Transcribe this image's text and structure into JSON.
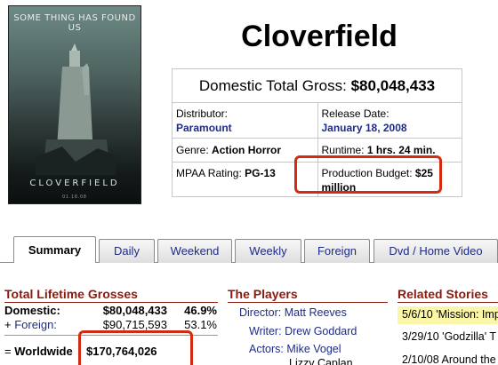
{
  "poster": {
    "tagline": "SOME THING HAS FOUND US",
    "title": "CLOVERFIELD",
    "date": "01.18.08"
  },
  "movie": {
    "title": "Cloverfield"
  },
  "info": {
    "gross_label": "Domestic Total Gross:",
    "gross_value": "$80,048,433",
    "distributor_label": "Distributor:",
    "distributor_value": "Paramount",
    "release_label": "Release Date:",
    "release_value": "January 18, 2008",
    "genre_label": "Genre:",
    "genre_value": "Action Horror",
    "runtime_label": "Runtime:",
    "runtime_value": "1 hrs. 24 min.",
    "mpaa_label": "MPAA Rating:",
    "mpaa_value": "PG-13",
    "budget_label": "Production Budget:",
    "budget_value_1": "$25",
    "budget_value_2": "million"
  },
  "tabs": [
    {
      "label": "Summary",
      "active": true
    },
    {
      "label": "Daily"
    },
    {
      "label": "Weekend"
    },
    {
      "label": "Weekly"
    },
    {
      "label": "Foreign"
    },
    {
      "label": "Dvd / Home Video"
    }
  ],
  "grosses": {
    "header": "Total Lifetime Grosses",
    "domestic_label": "Domestic:",
    "domestic_value": "$80,048,433",
    "domestic_pct": "46.9%",
    "foreign_prefix": "+",
    "foreign_label": "Foreign:",
    "foreign_value": "$90,715,593",
    "foreign_pct": "53.1%",
    "worldwide_prefix": "=",
    "worldwide_label": "Worldwide",
    "worldwide_value": "$170,764,026"
  },
  "players": {
    "header": "The Players",
    "director_label": "Director:",
    "director_value": "Matt Reeves",
    "writer_label": "Writer:",
    "writer_value": "Drew Goddard",
    "actors_label": "Actors:",
    "actor_1": "Mike Vogel",
    "actor_2": "Lizzy Caplan"
  },
  "stories": {
    "header": "Related Stories",
    "items": [
      {
        "text": "5/6/10 'Mission: Imp"
      },
      {
        "text": "3/29/10 'Godzilla' T"
      },
      {
        "text": "2/10/08 Around the"
      }
    ]
  },
  "colors": {
    "link": "#1e2c86",
    "section": "#8b1a0e",
    "highlight": "#d42a12",
    "story_highlight": "#fbf6a8"
  }
}
